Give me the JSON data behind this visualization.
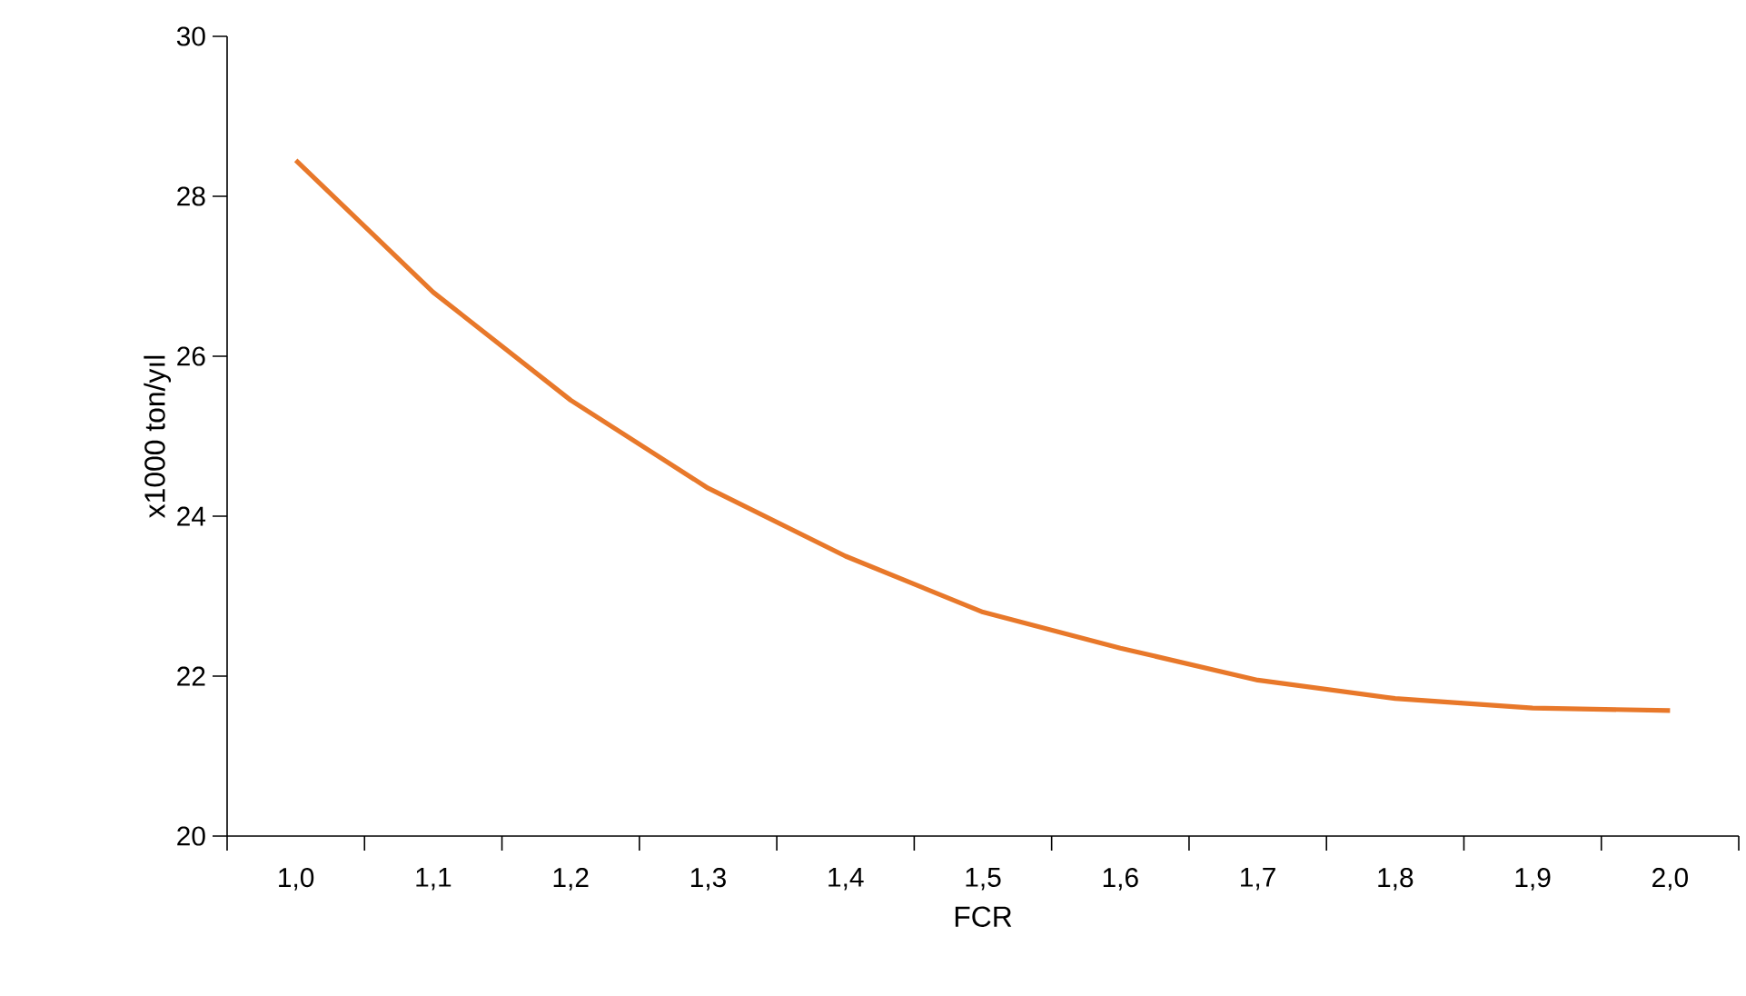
{
  "chart_data": {
    "type": "line",
    "xlabel": "FCR",
    "ylabel": "x1000 ton/yıl",
    "categories": [
      "1,0",
      "1,1",
      "1,2",
      "1,3",
      "1,4",
      "1,5",
      "1,6",
      "1,7",
      "1,8",
      "1,9",
      "2,0"
    ],
    "series": [
      {
        "color": "#e8782a",
        "values": [
          28.45,
          26.8,
          25.45,
          24.35,
          23.5,
          22.8,
          22.35,
          21.95,
          21.72,
          21.6,
          21.57
        ]
      }
    ],
    "ylim": [
      20,
      30
    ],
    "yticks": [
      20,
      22,
      24,
      26,
      28,
      30
    ],
    "grid": false,
    "marker": "none",
    "line_style": "solid"
  }
}
